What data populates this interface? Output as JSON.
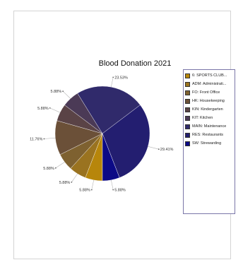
{
  "chart_data": {
    "type": "pie",
    "title": "Blood Donation 2021",
    "legend_position": "right",
    "slices": [
      {
        "name": "6: SPORTS CLUB...",
        "value": 5.88,
        "label": "5.88%",
        "color": "#b7860b"
      },
      {
        "name": "ADM: Administrati...",
        "value": 5.88,
        "label": "5.88%",
        "color": "#9a7320"
      },
      {
        "name": "FO: Front Office",
        "value": 5.88,
        "label": "5.88%",
        "color": "#7e6130"
      },
      {
        "name": "HK: Housekeeping",
        "value": 11.76,
        "label": "11.76%",
        "color": "#6b5038"
      },
      {
        "name": "KIN: Kindergarten",
        "value": 5.88,
        "label": "5.88%",
        "color": "#5a4346"
      },
      {
        "name": "KIT: Kitchen",
        "value": 5.88,
        "label": "5.88%",
        "color": "#4b3a56"
      },
      {
        "name": "MAIN: Maintenance",
        "value": 23.53,
        "label": "23.53%",
        "color": "#302a6b"
      },
      {
        "name": "RES: Restaurants",
        "value": 29.41,
        "label": "29.41%",
        "color": "#231e70"
      },
      {
        "name": "SW: Strewarding",
        "value": 5.88,
        "label": "5.88%",
        "color": "#0c0a86"
      }
    ]
  }
}
